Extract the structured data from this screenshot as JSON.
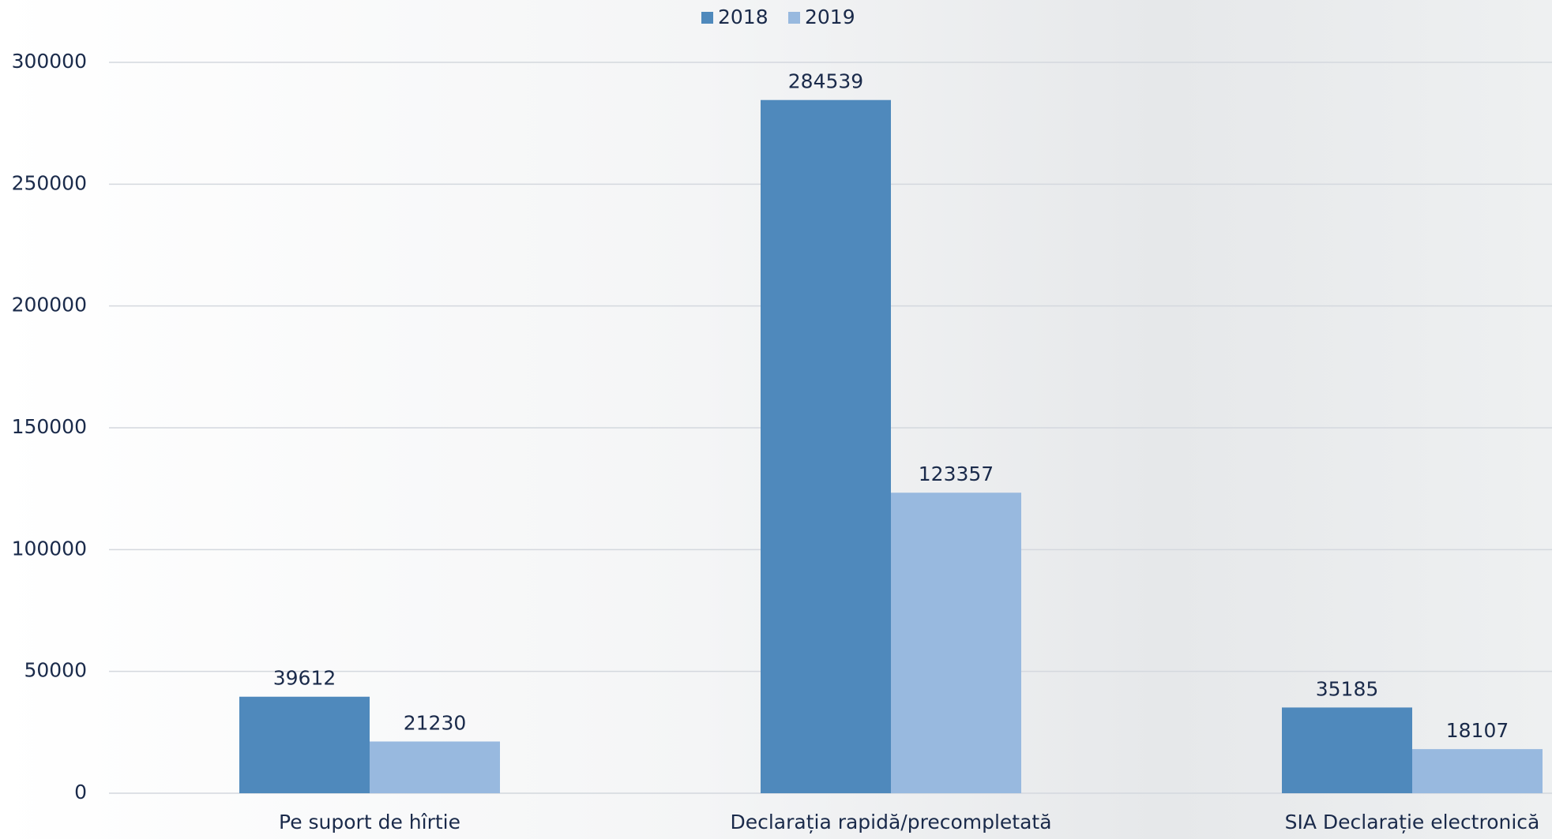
{
  "chart_data": {
    "type": "bar",
    "categories": [
      "Pe suport de hîrtie",
      "Declarația rapidă/precompletată",
      "SIA Declarație electronică"
    ],
    "series": [
      {
        "name": "2018",
        "color": "#4f89bc",
        "values": [
          39612,
          284539,
          35185
        ]
      },
      {
        "name": "2019",
        "color": "#98b9df",
        "values": [
          21230,
          123357,
          18107
        ]
      }
    ],
    "ylim": [
      0,
      300000
    ],
    "yticks": [
      0,
      50000,
      100000,
      150000,
      200000,
      250000,
      300000
    ],
    "grid": true
  }
}
